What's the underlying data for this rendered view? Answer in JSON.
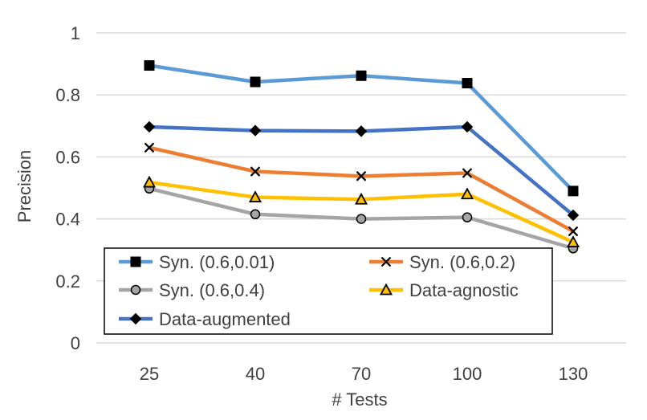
{
  "chart_data": {
    "type": "line",
    "title": "",
    "xlabel": "# Tests",
    "ylabel": "Precision",
    "categories": [
      "25",
      "40",
      "70",
      "100",
      "130"
    ],
    "ylim": [
      0,
      1
    ],
    "yticks": [
      "0",
      "0.2",
      "0.4",
      "0.6",
      "0.8",
      "1"
    ],
    "grid": true,
    "legend_position": "bottom-left",
    "series": [
      {
        "name": "Syn. (0.6,0.01)",
        "values": [
          0.895,
          0.842,
          0.862,
          0.838,
          0.49
        ],
        "color": "#5B9BD5",
        "marker": "square"
      },
      {
        "name": "Syn. (0.6,0.2)",
        "values": [
          0.63,
          0.553,
          0.538,
          0.548,
          0.36
        ],
        "color": "#ED7D31",
        "marker": "x"
      },
      {
        "name": "Syn. (0.6,0.4)",
        "values": [
          0.498,
          0.415,
          0.4,
          0.405,
          0.305
        ],
        "color": "#A5A5A5",
        "marker": "circle"
      },
      {
        "name": "Data-agnostic",
        "values": [
          0.518,
          0.47,
          0.463,
          0.48,
          0.325
        ],
        "color": "#FFC000",
        "marker": "triangle"
      },
      {
        "name": "Data-augmented",
        "values": [
          0.697,
          0.685,
          0.683,
          0.697,
          0.412
        ],
        "color": "#4472C4",
        "marker": "diamond"
      }
    ]
  }
}
